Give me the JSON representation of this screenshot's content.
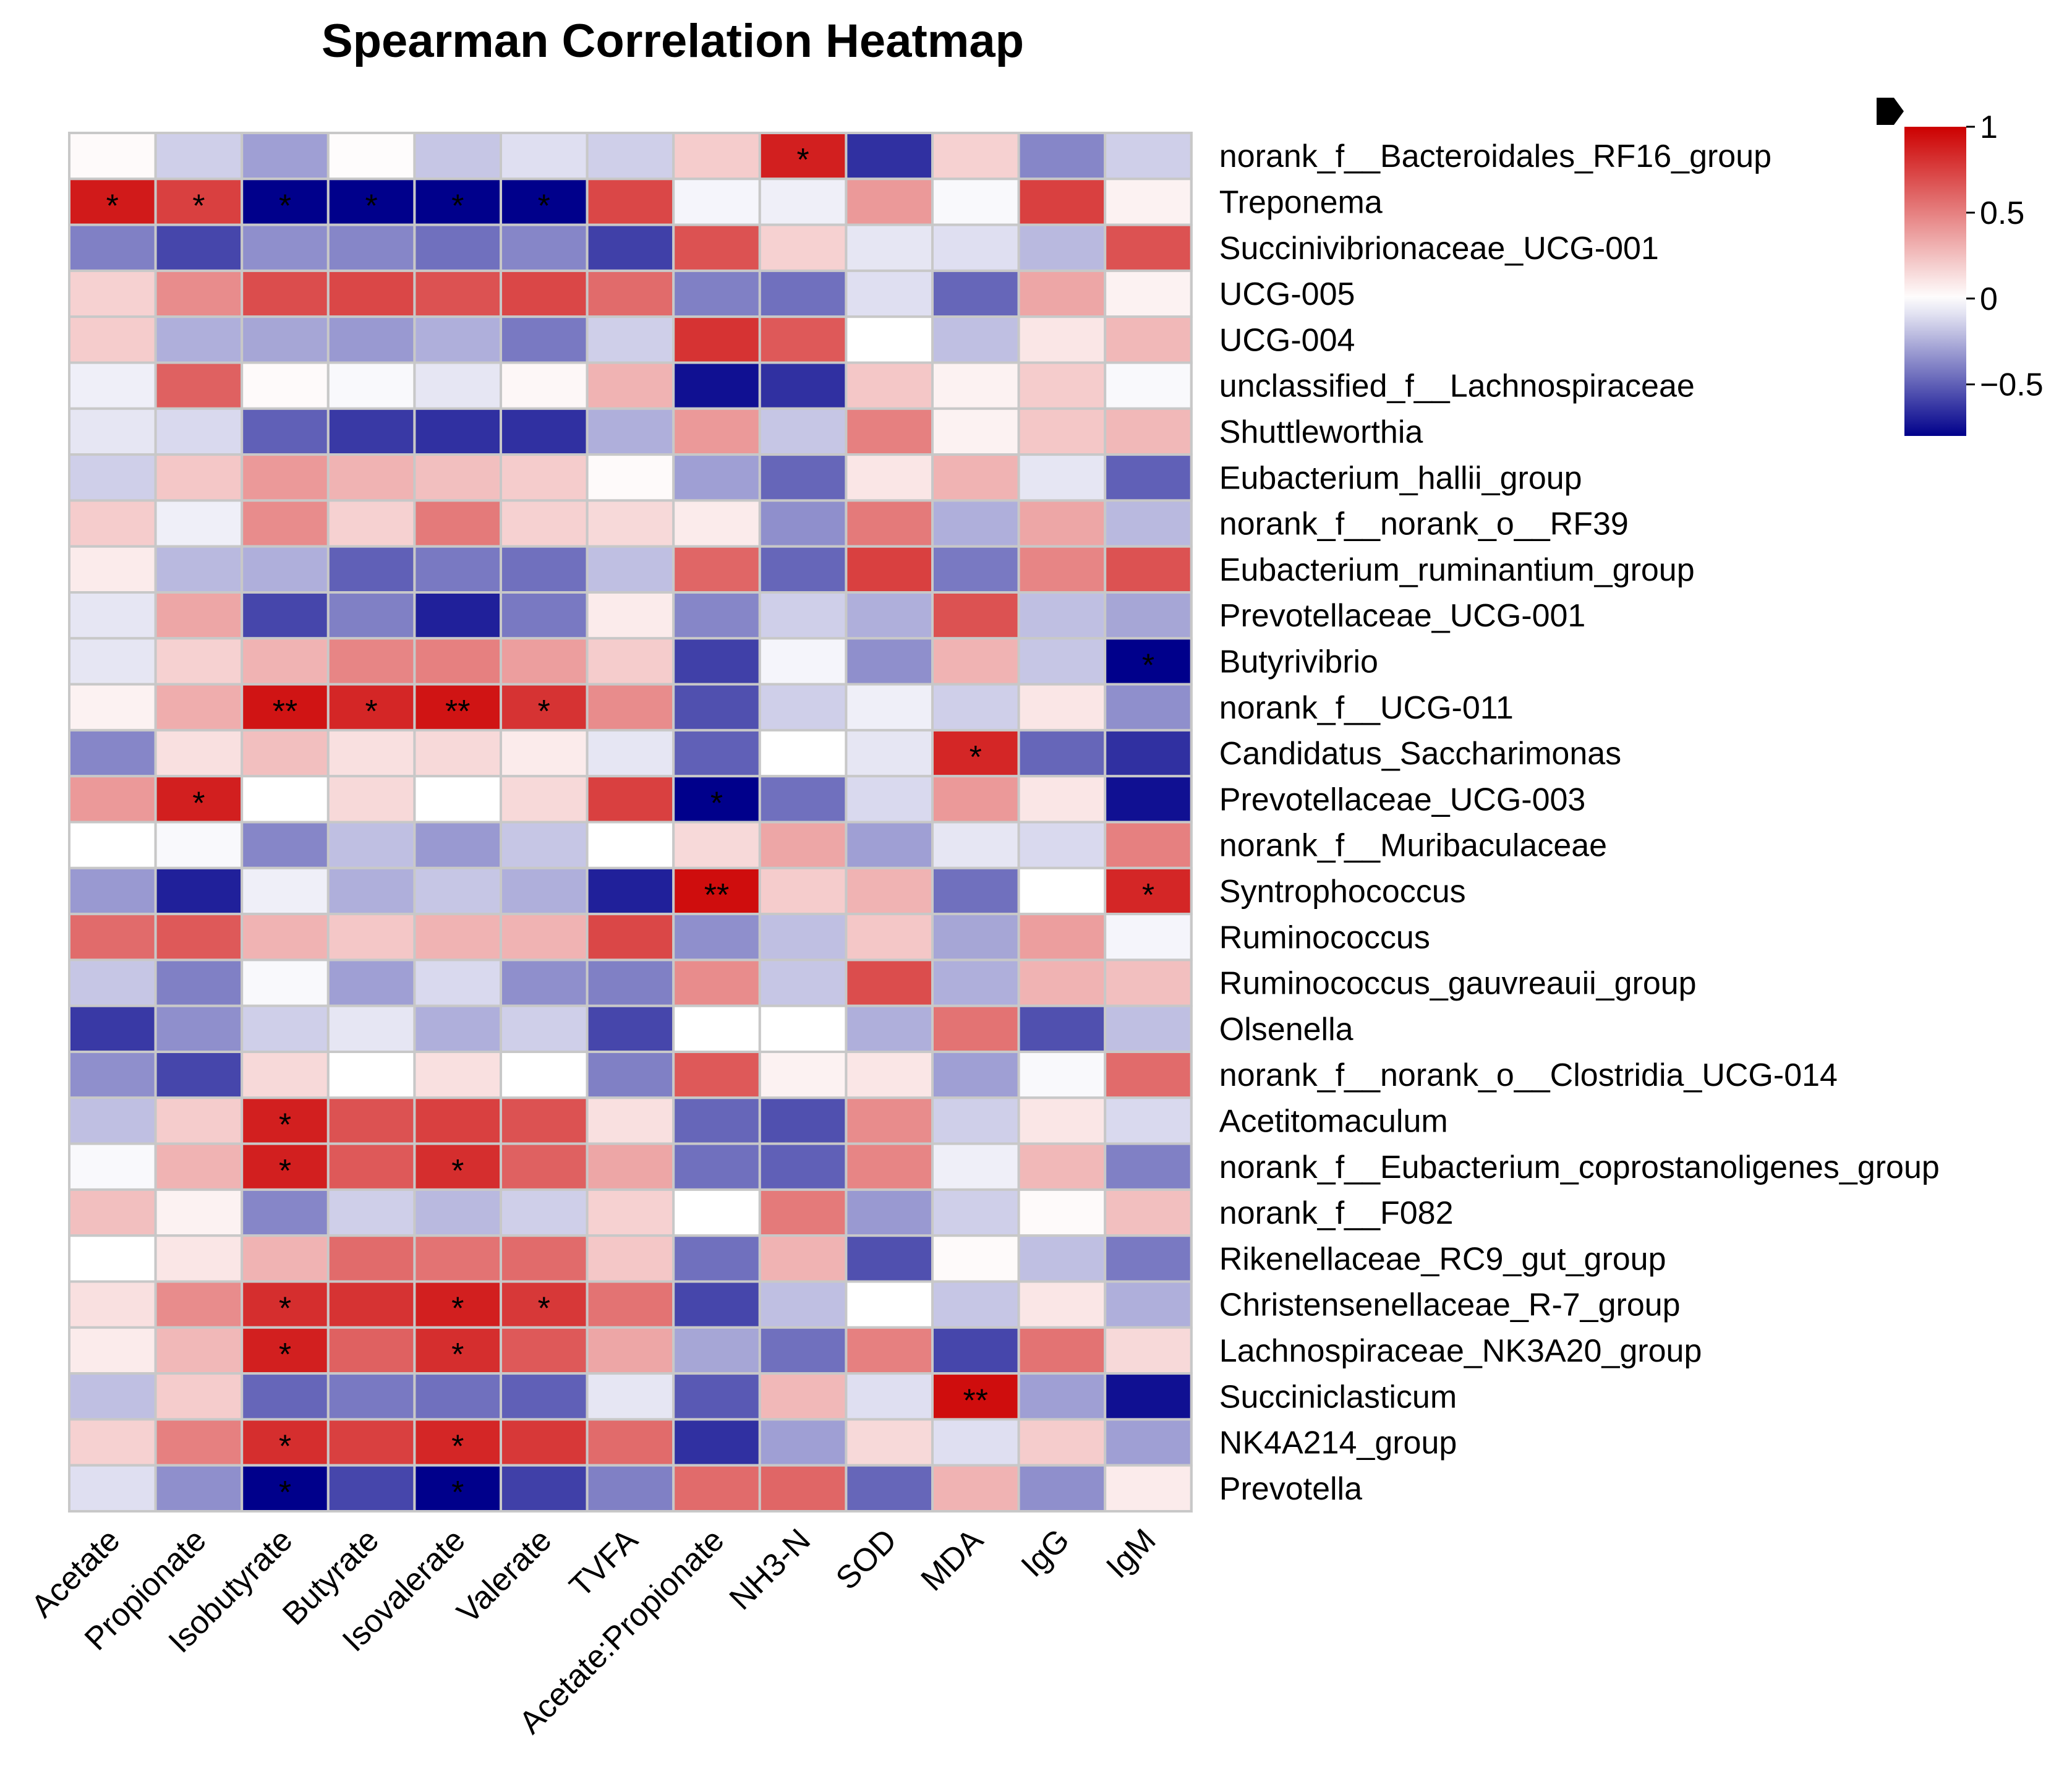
{
  "chart_data": {
    "type": "heatmap",
    "title": "Spearman Correlation Heatmap",
    "columns": [
      "Acetate",
      "Propionate",
      "Isobutyrate",
      "Butyrate",
      "Isovalerate",
      "Valerate",
      "TVFA",
      "Acetate:Propionate",
      "NH3-N",
      "SOD",
      "MDA",
      "IgG",
      "IgM"
    ],
    "rows": [
      "norank_f__Bacteroidales_RF16_group",
      "Treponema",
      "Succinivibrionaceae_UCG-001",
      "UCG-005",
      "UCG-004",
      "unclassified_f__Lachnospiraceae",
      "Shuttleworthia",
      "Eubacterium_hallii_group",
      "norank_f__norank_o__RF39",
      "Eubacterium_ruminantium_group",
      "Prevotellaceae_UCG-001",
      "Butyrivibrio",
      "norank_f__UCG-011",
      "Candidatus_Saccharimonas",
      "Prevotellaceae_UCG-003",
      "norank_f__Muribaculaceae",
      "Syntrophococcus",
      "Ruminococcus",
      "Ruminococcus_gauvreauii_group",
      "Olsenella",
      "norank_f__norank_o__Clostridia_UCG-014",
      "Acetitomaculum",
      "norank_f__Eubacterium_coprostanoligenes_group",
      "norank_f__F082",
      "Rikenellaceae_RC9_gut_group",
      "Christensenellaceae_R-7_group",
      "Lachnospiraceae_NK3A20_group",
      "Succiniclasticum",
      "NK4A214_group",
      "Prevotella"
    ],
    "values": [
      [
        0.02,
        -0.15,
        -0.3,
        0.01,
        -0.18,
        -0.1,
        -0.15,
        0.2,
        0.88,
        -0.65,
        0.18,
        -0.38,
        -0.15
      ],
      [
        0.9,
        0.75,
        -0.8,
        -0.8,
        -0.8,
        -0.8,
        0.72,
        -0.03,
        -0.05,
        0.4,
        -0.02,
        0.75,
        0.05
      ],
      [
        -0.4,
        -0.58,
        -0.35,
        -0.38,
        -0.45,
        -0.38,
        -0.6,
        0.68,
        0.18,
        -0.08,
        -0.1,
        -0.22,
        0.68
      ],
      [
        0.18,
        0.45,
        0.7,
        0.72,
        0.68,
        0.72,
        0.58,
        -0.4,
        -0.45,
        -0.1,
        -0.48,
        0.35,
        0.05
      ],
      [
        0.2,
        -0.25,
        -0.28,
        -0.32,
        -0.25,
        -0.42,
        -0.15,
        0.8,
        0.65,
        0.0,
        -0.2,
        0.1,
        0.28
      ],
      [
        -0.05,
        0.62,
        0.02,
        -0.02,
        -0.08,
        0.03,
        0.3,
        -0.75,
        -0.65,
        0.22,
        0.05,
        0.2,
        -0.02
      ],
      [
        -0.08,
        -0.12,
        -0.5,
        -0.62,
        -0.65,
        -0.65,
        -0.25,
        0.4,
        -0.18,
        0.5,
        0.05,
        0.22,
        0.28
      ],
      [
        -0.15,
        0.22,
        0.4,
        0.3,
        0.25,
        0.2,
        0.02,
        -0.3,
        -0.48,
        0.1,
        0.3,
        -0.08,
        -0.5
      ],
      [
        0.2,
        -0.05,
        0.45,
        0.18,
        0.52,
        0.18,
        0.15,
        0.08,
        -0.35,
        0.52,
        -0.25,
        0.35,
        -0.22
      ],
      [
        0.08,
        -0.22,
        -0.25,
        -0.5,
        -0.42,
        -0.45,
        -0.2,
        0.6,
        -0.48,
        0.75,
        -0.42,
        0.48,
        0.68
      ],
      [
        -0.08,
        0.35,
        -0.58,
        -0.4,
        -0.7,
        -0.42,
        0.08,
        -0.38,
        -0.15,
        -0.25,
        0.68,
        -0.2,
        -0.28
      ],
      [
        -0.08,
        0.18,
        0.3,
        0.48,
        0.5,
        0.38,
        0.2,
        -0.6,
        -0.03,
        -0.35,
        0.3,
        -0.18,
        -0.8
      ],
      [
        0.05,
        0.32,
        0.92,
        0.85,
        0.92,
        0.8,
        0.45,
        -0.55,
        -0.15,
        -0.05,
        -0.15,
        0.1,
        -0.35
      ],
      [
        -0.38,
        0.12,
        0.25,
        0.12,
        0.15,
        0.08,
        -0.08,
        -0.5,
        0.0,
        -0.08,
        0.85,
        -0.48,
        -0.65
      ],
      [
        0.4,
        0.88,
        0.0,
        0.15,
        0.0,
        0.15,
        0.75,
        -0.8,
        -0.45,
        -0.12,
        0.4,
        0.1,
        -0.75
      ],
      [
        0.0,
        -0.02,
        -0.38,
        -0.2,
        -0.32,
        -0.18,
        0.0,
        0.15,
        0.35,
        -0.3,
        -0.08,
        -0.12,
        0.5
      ],
      [
        -0.32,
        -0.7,
        -0.05,
        -0.25,
        -0.18,
        -0.25,
        -0.7,
        0.95,
        0.2,
        0.3,
        -0.45,
        0.0,
        0.85
      ],
      [
        0.58,
        0.65,
        0.3,
        0.22,
        0.3,
        0.3,
        0.72,
        -0.35,
        -0.2,
        0.22,
        -0.28,
        0.38,
        -0.03
      ],
      [
        -0.18,
        -0.4,
        -0.02,
        -0.3,
        -0.12,
        -0.35,
        -0.4,
        0.45,
        -0.18,
        0.7,
        -0.25,
        0.3,
        0.25
      ],
      [
        -0.62,
        -0.35,
        -0.15,
        -0.08,
        -0.25,
        -0.15,
        -0.58,
        0.0,
        0.0,
        -0.25,
        0.55,
        -0.55,
        -0.2
      ],
      [
        -0.35,
        -0.58,
        0.15,
        0.0,
        0.12,
        0.0,
        -0.4,
        0.65,
        0.05,
        0.1,
        -0.3,
        -0.02,
        0.58
      ],
      [
        -0.2,
        0.2,
        0.88,
        0.68,
        0.75,
        0.68,
        0.12,
        -0.48,
        -0.55,
        0.45,
        -0.15,
        0.1,
        -0.12
      ],
      [
        -0.02,
        0.3,
        0.88,
        0.65,
        0.82,
        0.62,
        0.35,
        -0.45,
        -0.5,
        0.48,
        -0.05,
        0.28,
        -0.4
      ],
      [
        0.25,
        0.05,
        -0.38,
        -0.15,
        -0.22,
        -0.15,
        0.18,
        0.0,
        0.52,
        -0.32,
        -0.15,
        0.02,
        0.25
      ],
      [
        0.0,
        0.1,
        0.3,
        0.58,
        0.55,
        0.58,
        0.22,
        -0.45,
        0.3,
        -0.55,
        0.02,
        -0.2,
        -0.42
      ],
      [
        0.12,
        0.45,
        0.82,
        0.8,
        0.88,
        0.78,
        0.55,
        -0.58,
        -0.2,
        0.0,
        -0.18,
        0.1,
        -0.25
      ],
      [
        0.08,
        0.28,
        0.88,
        0.62,
        0.82,
        0.65,
        0.35,
        -0.28,
        -0.45,
        0.5,
        -0.58,
        0.55,
        0.15
      ],
      [
        -0.2,
        0.2,
        -0.48,
        -0.42,
        -0.45,
        -0.5,
        -0.08,
        -0.52,
        0.28,
        -0.1,
        0.95,
        -0.3,
        -0.75
      ],
      [
        0.18,
        0.5,
        0.82,
        0.75,
        0.85,
        0.78,
        0.58,
        -0.65,
        -0.3,
        0.15,
        -0.1,
        0.2,
        -0.3
      ],
      [
        -0.1,
        -0.35,
        -0.8,
        -0.58,
        -0.8,
        -0.6,
        -0.4,
        0.58,
        0.6,
        -0.48,
        0.3,
        -0.35,
        0.08
      ]
    ],
    "significance": [
      [
        "",
        "",
        "",
        "",
        "",
        "",
        "",
        "",
        "*",
        "",
        "",
        "",
        ""
      ],
      [
        "*",
        "*",
        "*",
        "*",
        "*",
        "*",
        "",
        "",
        "",
        "",
        "",
        "",
        ""
      ],
      [
        "",
        "",
        "",
        "",
        "",
        "",
        "",
        "",
        "",
        "",
        "",
        "",
        ""
      ],
      [
        "",
        "",
        "",
        "",
        "",
        "",
        "",
        "",
        "",
        "",
        "",
        "",
        ""
      ],
      [
        "",
        "",
        "",
        "",
        "",
        "",
        "",
        "",
        "",
        "",
        "",
        "",
        ""
      ],
      [
        "",
        "",
        "",
        "",
        "",
        "",
        "",
        "",
        "",
        "",
        "",
        "",
        ""
      ],
      [
        "",
        "",
        "",
        "",
        "",
        "",
        "",
        "",
        "",
        "",
        "",
        "",
        ""
      ],
      [
        "",
        "",
        "",
        "",
        "",
        "",
        "",
        "",
        "",
        "",
        "",
        "",
        ""
      ],
      [
        "",
        "",
        "",
        "",
        "",
        "",
        "",
        "",
        "",
        "",
        "",
        "",
        ""
      ],
      [
        "",
        "",
        "",
        "",
        "",
        "",
        "",
        "",
        "",
        "",
        "",
        "",
        ""
      ],
      [
        "",
        "",
        "",
        "",
        "",
        "",
        "",
        "",
        "",
        "",
        "",
        "",
        ""
      ],
      [
        "",
        "",
        "",
        "",
        "",
        "",
        "",
        "",
        "",
        "",
        "",
        "",
        "*"
      ],
      [
        "",
        "",
        "**",
        "*",
        "**",
        "*",
        "",
        "",
        "",
        "",
        "",
        "",
        ""
      ],
      [
        "",
        "",
        "",
        "",
        "",
        "",
        "",
        "",
        "",
        "",
        "*",
        "",
        ""
      ],
      [
        "",
        "*",
        "",
        "",
        "",
        "",
        "",
        "*",
        "",
        "",
        "",
        "",
        ""
      ],
      [
        "",
        "",
        "",
        "",
        "",
        "",
        "",
        "",
        "",
        "",
        "",
        "",
        ""
      ],
      [
        "",
        "",
        "",
        "",
        "",
        "",
        "",
        "**",
        "",
        "",
        "",
        "",
        "*"
      ],
      [
        "",
        "",
        "",
        "",
        "",
        "",
        "",
        "",
        "",
        "",
        "",
        "",
        ""
      ],
      [
        "",
        "",
        "",
        "",
        "",
        "",
        "",
        "",
        "",
        "",
        "",
        "",
        ""
      ],
      [
        "",
        "",
        "",
        "",
        "",
        "",
        "",
        "",
        "",
        "",
        "",
        "",
        ""
      ],
      [
        "",
        "",
        "",
        "",
        "",
        "",
        "",
        "",
        "",
        "",
        "",
        "",
        ""
      ],
      [
        "",
        "",
        "*",
        "",
        "",
        "",
        "",
        "",
        "",
        "",
        "",
        "",
        ""
      ],
      [
        "",
        "",
        "*",
        "",
        "*",
        "",
        "",
        "",
        "",
        "",
        "",
        "",
        ""
      ],
      [
        "",
        "",
        "",
        "",
        "",
        "",
        "",
        "",
        "",
        "",
        "",
        "",
        ""
      ],
      [
        "",
        "",
        "",
        "",
        "",
        "",
        "",
        "",
        "",
        "",
        "",
        "",
        ""
      ],
      [
        "",
        "",
        "*",
        "",
        "*",
        "*",
        "",
        "",
        "",
        "",
        "",
        "",
        ""
      ],
      [
        "",
        "",
        "*",
        "",
        "*",
        "",
        "",
        "",
        "",
        "",
        "",
        "",
        ""
      ],
      [
        "",
        "",
        "",
        "",
        "",
        "",
        "",
        "",
        "",
        "",
        "**",
        "",
        ""
      ],
      [
        "",
        "",
        "*",
        "",
        "*",
        "",
        "",
        "",
        "",
        "",
        "",
        "",
        ""
      ],
      [
        "",
        "",
        "*",
        "",
        "*",
        "",
        "",
        "",
        "",
        "",
        "",
        "",
        ""
      ]
    ],
    "color_scale": {
      "min": -0.8,
      "max": 1.0,
      "low_color": "#00008B",
      "mid_color": "#FFFFFF",
      "high_color": "#CC0000",
      "ticks": [
        1,
        0.5,
        0,
        -0.5
      ],
      "tick_labels": [
        "1",
        "0.5",
        "0",
        "−0.5"
      ]
    },
    "grid_color": "#C8C8C8",
    "legend_position": "top-right"
  }
}
